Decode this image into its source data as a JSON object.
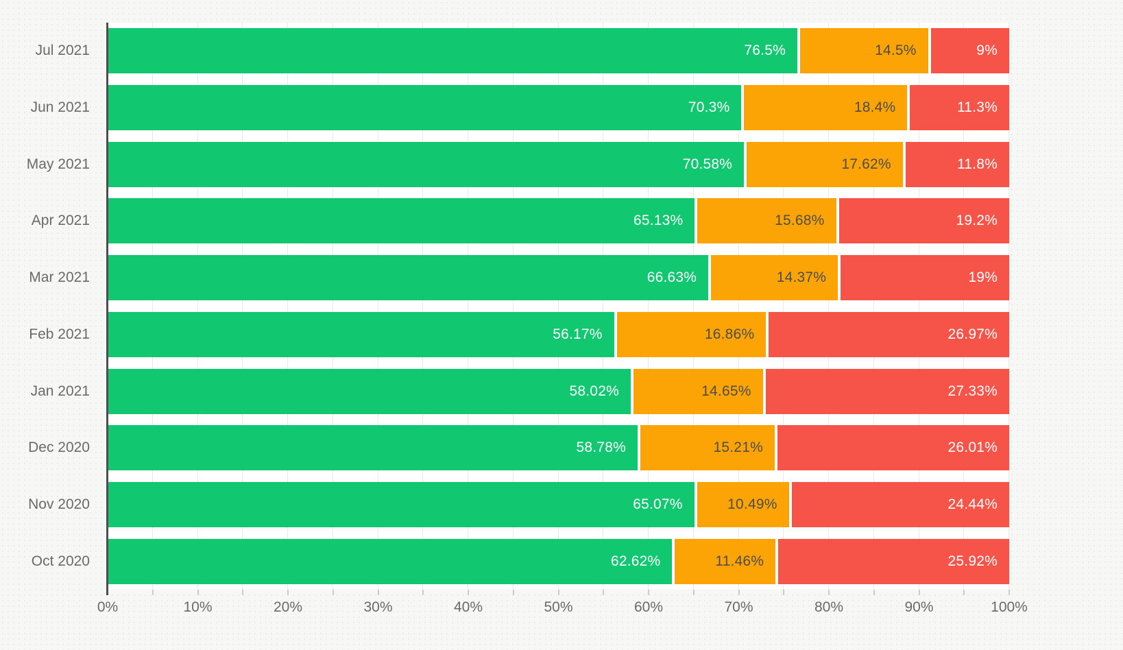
{
  "chart_data": {
    "type": "bar",
    "orientation": "horizontal",
    "stacked": true,
    "unit": "%",
    "legend": "none",
    "grid": "vertical minor gridlines every 5%",
    "categories": [
      "Jul 2021",
      "Jun 2021",
      "May 2021",
      "Apr 2021",
      "Mar 2021",
      "Feb 2021",
      "Jan 2021",
      "Dec 2020",
      "Nov 2020",
      "Oct 2020"
    ],
    "series": [
      {
        "name": "green",
        "color": "#11c76f",
        "label_color": "#ffffff",
        "values": [
          76.5,
          70.3,
          70.58,
          65.13,
          66.63,
          56.17,
          58.02,
          58.78,
          65.07,
          62.62
        ],
        "labels": [
          "76.5%",
          "70.3%",
          "70.58%",
          "65.13%",
          "66.63%",
          "56.17%",
          "58.02%",
          "58.78%",
          "65.07%",
          "62.62%"
        ]
      },
      {
        "name": "orange",
        "color": "#fca405",
        "label_color": "#4d4d4d",
        "values": [
          14.5,
          18.4,
          17.62,
          15.68,
          14.37,
          16.86,
          14.65,
          15.21,
          10.49,
          11.46
        ],
        "labels": [
          "14.5%",
          "18.4%",
          "17.62%",
          "15.68%",
          "14.37%",
          "16.86%",
          "14.65%",
          "15.21%",
          "10.49%",
          "11.46%"
        ]
      },
      {
        "name": "red",
        "color": "#f65448",
        "label_color": "#ffffff",
        "values": [
          9,
          11.3,
          11.8,
          19.2,
          19,
          26.97,
          27.33,
          26.01,
          24.44,
          25.92
        ],
        "labels": [
          "9%",
          "11.3%",
          "11.8%",
          "19.2%",
          "19%",
          "26.97%",
          "27.33%",
          "26.01%",
          "24.44%",
          "25.92%"
        ]
      }
    ],
    "x_axis": {
      "min": 0,
      "max": 100,
      "tick_labels": [
        "0%",
        "10%",
        "20%",
        "30%",
        "40%",
        "50%",
        "60%",
        "70%",
        "80%",
        "90%",
        "100%"
      ],
      "major_tick_step": 10,
      "minor_tick_step": 5
    },
    "colors": {
      "page_background": "#f7f7f6",
      "plot_background": "#ffffff",
      "gridline": "#e9e9e9",
      "y_axis_line": "#4d4d4d",
      "tick_mark": "#cccccc",
      "axis_text": "#6a6a6a"
    }
  }
}
